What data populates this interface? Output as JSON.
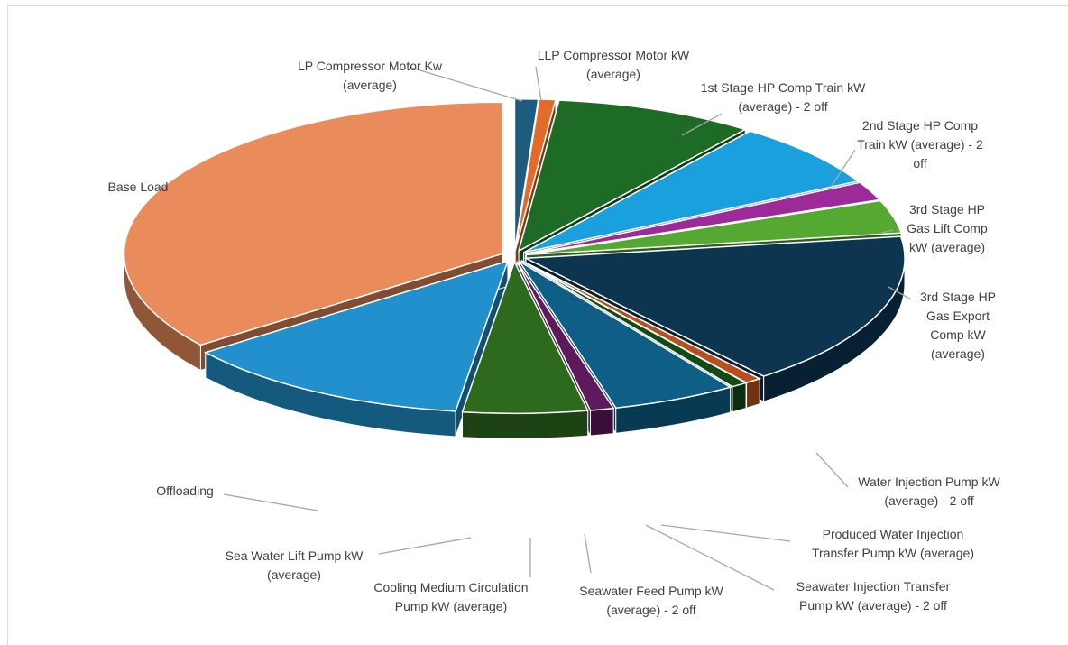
{
  "chart_data": {
    "type": "pie",
    "variant": "3d-exploded",
    "title": "",
    "series": [
      {
        "name": "",
        "labels": [
          "LP Compressor Motor Kw (average)",
          "LLP Compressor Motor kW (average)",
          "1st Stage HP Comp Train kW (average) - 2 off",
          "2nd Stage HP Comp Train kW (average) - 2 off",
          "3rd Stage HP Gas Lift Comp kW (average)",
          "3rd Stage HP Gas Export Comp kW (average)",
          "Water Injection Pump kW (average) - 2 off",
          "Produced Water Injection Transfer Pump kW (average)",
          "Seawater Injection Transfer Pump kW (average) - 2 off",
          "Seawater Feed Pump kW (average) - 2 off",
          "Cooling Medium Circulation Pump kW (average)",
          "Sea Water Lift Pump kW (average)",
          "Offloading",
          "Base Load"
        ],
        "values": [
          1.0,
          0.7,
          8.5,
          7.0,
          2.0,
          3.5,
          16.5,
          0.7,
          0.7,
          5.3,
          1.0,
          5.3,
          12.5,
          35.3
        ]
      }
    ],
    "slices": [
      {
        "label_lines": [
          "LP Compressor Motor Kw",
          "(average)"
        ],
        "value": 1.0,
        "color": "#1d5c7f"
      },
      {
        "label_lines": [
          "LLP Compressor Motor kW",
          "(average)"
        ],
        "value": 0.7,
        "color": "#e26b2a"
      },
      {
        "label_lines": [
          "1st Stage HP Comp Train kW",
          "(average) - 2 off"
        ],
        "value": 8.5,
        "color": "#1e6b25"
      },
      {
        "label_lines": [
          "2nd Stage HP Comp",
          "Train kW (average) - 2",
          "off"
        ],
        "value": 7.0,
        "color": "#1aa0dc"
      },
      {
        "label_lines": [
          "3rd Stage HP",
          "Gas Lift Comp",
          "kW (average)"
        ],
        "value": 2.0,
        "color": "#9c2a99"
      },
      {
        "label_lines": [
          "3rd Stage HP",
          "Gas Export",
          "Comp kW",
          "(average)"
        ],
        "value": 3.5,
        "color": "#55a932"
      },
      {
        "label_lines": [
          "Water Injection Pump kW",
          "(average) - 2 off"
        ],
        "value": 16.5,
        "color": "#0d3550"
      },
      {
        "label_lines": [
          "Produced Water Injection",
          "Transfer Pump kW (average)"
        ],
        "value": 0.7,
        "color": "#b84f1f"
      },
      {
        "label_lines": [
          "Seawater Injection Transfer",
          "Pump kW (average) - 2 off"
        ],
        "value": 0.7,
        "color": "#124a18"
      },
      {
        "label_lines": [
          "Seawater Feed Pump kW",
          "(average) - 2 off"
        ],
        "value": 5.3,
        "color": "#0e5e86"
      },
      {
        "label_lines": [
          "Cooling Medium Circulation",
          "Pump kW (average)"
        ],
        "value": 1.0,
        "color": "#5e1a5c"
      },
      {
        "label_lines": [
          "Sea Water Lift Pump kW",
          "(average)"
        ],
        "value": 5.3,
        "color": "#2e6a1e"
      },
      {
        "label_lines": [
          "Offloading"
        ],
        "value": 12.5,
        "color": "#2190cc"
      },
      {
        "label_lines": [
          "Base Load"
        ],
        "value": 35.3,
        "color": "#e98b5b"
      }
    ],
    "legend": "none",
    "data_labels": "outside-with-leader-lines"
  }
}
